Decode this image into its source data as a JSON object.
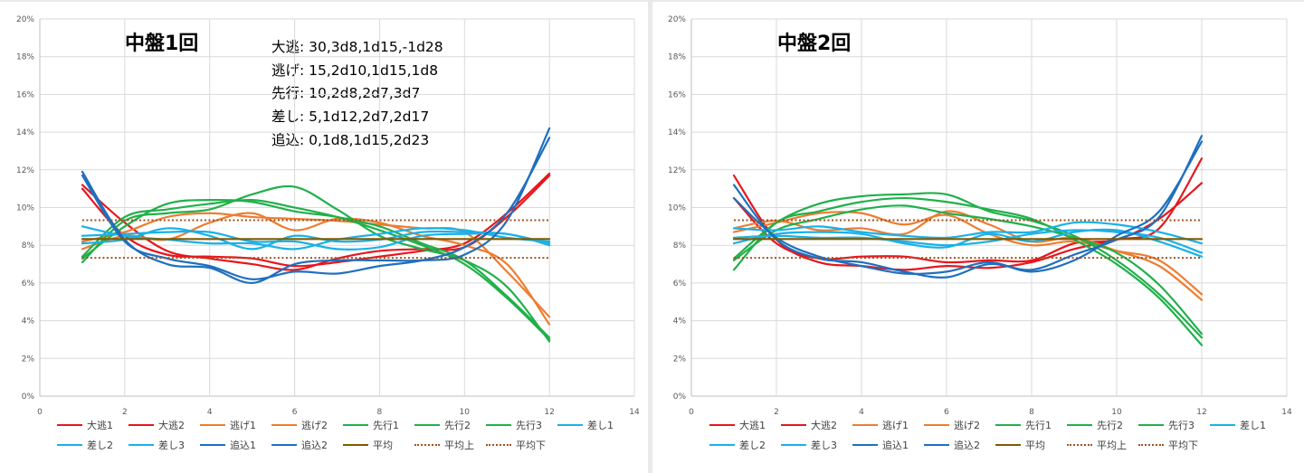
{
  "chart_data": [
    {
      "type": "line",
      "title": "中盤1回",
      "annotations": [
        "大逃: 30,3d8,1d15,-1d28",
        "逃げ: 15,2d10,1d15,1d8",
        "先行: 10,2d8,2d7,3d7",
        "差し: 5,1d12,2d7,2d17",
        "追込: 0,1d8,1d15,2d23"
      ],
      "xlim": [
        0,
        14
      ],
      "ylim": [
        0,
        0.2
      ],
      "x_ticks": [
        "0",
        "2",
        "4",
        "6",
        "8",
        "10",
        "12",
        "14"
      ],
      "y_ticks": [
        "0%",
        "2%",
        "4%",
        "6%",
        "8%",
        "10%",
        "12%",
        "14%",
        "16%",
        "18%",
        "20%"
      ],
      "grid": true,
      "legend_position": "bottom",
      "x": [
        1,
        2,
        3,
        4,
        5,
        6,
        7,
        8,
        9,
        10,
        11,
        12
      ],
      "series": [
        {
          "name": "大逃1",
          "color": "#e8161c",
          "style": "solid",
          "values": [
            0.112,
            0.092,
            0.077,
            0.073,
            0.07,
            0.067,
            0.073,
            0.077,
            0.078,
            0.079,
            0.095,
            0.117
          ]
        },
        {
          "name": "大逃2",
          "color": "#e8161c",
          "style": "solid",
          "values": [
            0.11,
            0.085,
            0.075,
            0.074,
            0.073,
            0.069,
            0.071,
            0.074,
            0.077,
            0.081,
            0.097,
            0.118
          ]
        },
        {
          "name": "逃げ1",
          "color": "#ed7d31",
          "style": "solid",
          "values": [
            0.082,
            0.087,
            0.095,
            0.097,
            0.095,
            0.094,
            0.093,
            0.091,
            0.089,
            0.087,
            0.066,
            0.042
          ]
        },
        {
          "name": "逃げ2",
          "color": "#ed7d31",
          "style": "solid",
          "values": [
            0.078,
            0.085,
            0.083,
            0.092,
            0.097,
            0.088,
            0.094,
            0.092,
            0.085,
            0.08,
            0.07,
            0.038
          ]
        },
        {
          "name": "先行1",
          "color": "#21b04b",
          "style": "solid",
          "values": [
            0.073,
            0.09,
            0.102,
            0.104,
            0.103,
            0.098,
            0.095,
            0.09,
            0.081,
            0.072,
            0.053,
            0.031
          ]
        },
        {
          "name": "先行2",
          "color": "#21b04b",
          "style": "solid",
          "values": [
            0.074,
            0.095,
            0.099,
            0.102,
            0.104,
            0.1,
            0.095,
            0.088,
            0.08,
            0.07,
            0.052,
            0.03
          ]
        },
        {
          "name": "先行3",
          "color": "#21b04b",
          "style": "solid",
          "values": [
            0.071,
            0.093,
            0.097,
            0.099,
            0.107,
            0.111,
            0.099,
            0.085,
            0.078,
            0.072,
            0.058,
            0.029
          ]
        },
        {
          "name": "差し1",
          "color": "#1ab1e8",
          "style": "solid",
          "values": [
            0.09,
            0.085,
            0.083,
            0.081,
            0.081,
            0.078,
            0.083,
            0.086,
            0.089,
            0.088,
            0.084,
            0.082
          ]
        },
        {
          "name": "差し2",
          "color": "#1ab1e8",
          "style": "solid",
          "values": [
            0.085,
            0.086,
            0.087,
            0.087,
            0.082,
            0.082,
            0.078,
            0.079,
            0.085,
            0.086,
            0.086,
            0.08
          ]
        },
        {
          "name": "差し3",
          "color": "#1ab1e8",
          "style": "solid",
          "values": [
            0.081,
            0.083,
            0.089,
            0.085,
            0.078,
            0.085,
            0.082,
            0.083,
            0.087,
            0.087,
            0.086,
            0.081
          ]
        },
        {
          "name": "追込1",
          "color": "#1f6fbf",
          "style": "solid",
          "values": [
            0.119,
            0.083,
            0.07,
            0.068,
            0.06,
            0.07,
            0.072,
            0.072,
            0.072,
            0.075,
            0.093,
            0.142
          ]
        },
        {
          "name": "追込2",
          "color": "#1f6fbf",
          "style": "solid",
          "values": [
            0.117,
            0.082,
            0.073,
            0.069,
            0.062,
            0.066,
            0.065,
            0.069,
            0.072,
            0.079,
            0.097,
            0.137
          ]
        },
        {
          "name": "平均",
          "color": "#7f5a00",
          "style": "solid",
          "values": [
            0.0833,
            0.0833,
            0.0833,
            0.0833,
            0.0833,
            0.0833,
            0.0833,
            0.0833,
            0.0833,
            0.0833,
            0.0833,
            0.0833
          ]
        },
        {
          "name": "平均上",
          "color": "#a0521e",
          "style": "dotted",
          "values": [
            0.0933,
            0.0933,
            0.0933,
            0.0933,
            0.0933,
            0.0933,
            0.0933,
            0.0933,
            0.0933,
            0.0933,
            0.0933,
            0.0933
          ]
        },
        {
          "name": "平均下",
          "color": "#a0521e",
          "style": "dotted",
          "values": [
            0.0733,
            0.0733,
            0.0733,
            0.0733,
            0.0733,
            0.0733,
            0.0733,
            0.0733,
            0.0733,
            0.0733,
            0.0733,
            0.0733
          ]
        }
      ]
    },
    {
      "type": "line",
      "title": "中盤2回",
      "xlim": [
        0,
        14
      ],
      "ylim": [
        0,
        0.2
      ],
      "x_ticks": [
        "0",
        "2",
        "4",
        "6",
        "8",
        "10",
        "12",
        "14"
      ],
      "y_ticks": [
        "0%",
        "2%",
        "4%",
        "6%",
        "8%",
        "10%",
        "12%",
        "14%",
        "16%",
        "18%",
        "20%"
      ],
      "grid": true,
      "legend_position": "bottom",
      "x": [
        1,
        2,
        3,
        4,
        5,
        6,
        7,
        8,
        9,
        10,
        11,
        12
      ],
      "series": [
        {
          "name": "大逃1",
          "color": "#e8161c",
          "style": "solid",
          "values": [
            0.117,
            0.083,
            0.071,
            0.069,
            0.067,
            0.069,
            0.068,
            0.071,
            0.078,
            0.083,
            0.089,
            0.126
          ]
        },
        {
          "name": "大逃2",
          "color": "#e8161c",
          "style": "solid",
          "values": [
            0.105,
            0.081,
            0.073,
            0.074,
            0.074,
            0.071,
            0.072,
            0.072,
            0.081,
            0.083,
            0.094,
            0.113
          ]
        },
        {
          "name": "逃げ1",
          "color": "#ed7d31",
          "style": "solid",
          "values": [
            0.087,
            0.092,
            0.097,
            0.097,
            0.091,
            0.096,
            0.086,
            0.08,
            0.082,
            0.077,
            0.072,
            0.054
          ]
        },
        {
          "name": "逃げ2",
          "color": "#ed7d31",
          "style": "solid",
          "values": [
            0.089,
            0.093,
            0.088,
            0.089,
            0.086,
            0.098,
            0.091,
            0.082,
            0.084,
            0.077,
            0.069,
            0.051
          ]
        },
        {
          "name": "先行1",
          "color": "#21b04b",
          "style": "solid",
          "values": [
            0.073,
            0.092,
            0.102,
            0.106,
            0.107,
            0.107,
            0.098,
            0.093,
            0.085,
            0.072,
            0.054,
            0.031
          ]
        },
        {
          "name": "先行2",
          "color": "#21b04b",
          "style": "solid",
          "values": [
            0.067,
            0.092,
            0.098,
            0.103,
            0.105,
            0.103,
            0.099,
            0.094,
            0.083,
            0.07,
            0.052,
            0.027
          ]
        },
        {
          "name": "先行3",
          "color": "#21b04b",
          "style": "solid",
          "values": [
            0.072,
            0.088,
            0.094,
            0.099,
            0.101,
            0.097,
            0.094,
            0.09,
            0.084,
            0.076,
            0.059,
            0.033
          ]
        },
        {
          "name": "差し1",
          "color": "#1ab1e8",
          "style": "solid",
          "values": [
            0.089,
            0.088,
            0.09,
            0.087,
            0.085,
            0.084,
            0.087,
            0.087,
            0.092,
            0.091,
            0.087,
            0.081
          ]
        },
        {
          "name": "差し2",
          "color": "#1ab1e8",
          "style": "solid",
          "values": [
            0.084,
            0.085,
            0.084,
            0.084,
            0.082,
            0.08,
            0.082,
            0.086,
            0.088,
            0.087,
            0.084,
            0.076
          ]
        },
        {
          "name": "差し3",
          "color": "#1ab1e8",
          "style": "solid",
          "values": [
            0.081,
            0.086,
            0.087,
            0.086,
            0.081,
            0.079,
            0.086,
            0.082,
            0.087,
            0.088,
            0.082,
            0.074
          ]
        },
        {
          "name": "追込1",
          "color": "#1f6fbf",
          "style": "solid",
          "values": [
            0.112,
            0.083,
            0.073,
            0.071,
            0.066,
            0.063,
            0.07,
            0.067,
            0.075,
            0.083,
            0.095,
            0.138
          ]
        },
        {
          "name": "追込2",
          "color": "#1f6fbf",
          "style": "solid",
          "values": [
            0.105,
            0.084,
            0.074,
            0.069,
            0.065,
            0.066,
            0.071,
            0.066,
            0.072,
            0.085,
            0.098,
            0.135
          ]
        },
        {
          "name": "平均",
          "color": "#7f5a00",
          "style": "solid",
          "values": [
            0.0833,
            0.0833,
            0.0833,
            0.0833,
            0.0833,
            0.0833,
            0.0833,
            0.0833,
            0.0833,
            0.0833,
            0.0833,
            0.0833
          ]
        },
        {
          "name": "平均上",
          "color": "#a0521e",
          "style": "dotted",
          "values": [
            0.0933,
            0.0933,
            0.0933,
            0.0933,
            0.0933,
            0.0933,
            0.0933,
            0.0933,
            0.0933,
            0.0933,
            0.0933,
            0.0933
          ]
        },
        {
          "name": "平均下",
          "color": "#a0521e",
          "style": "dotted",
          "values": [
            0.0733,
            0.0733,
            0.0733,
            0.0733,
            0.0733,
            0.0733,
            0.0733,
            0.0733,
            0.0733,
            0.0733,
            0.0733,
            0.0733
          ]
        }
      ]
    }
  ]
}
